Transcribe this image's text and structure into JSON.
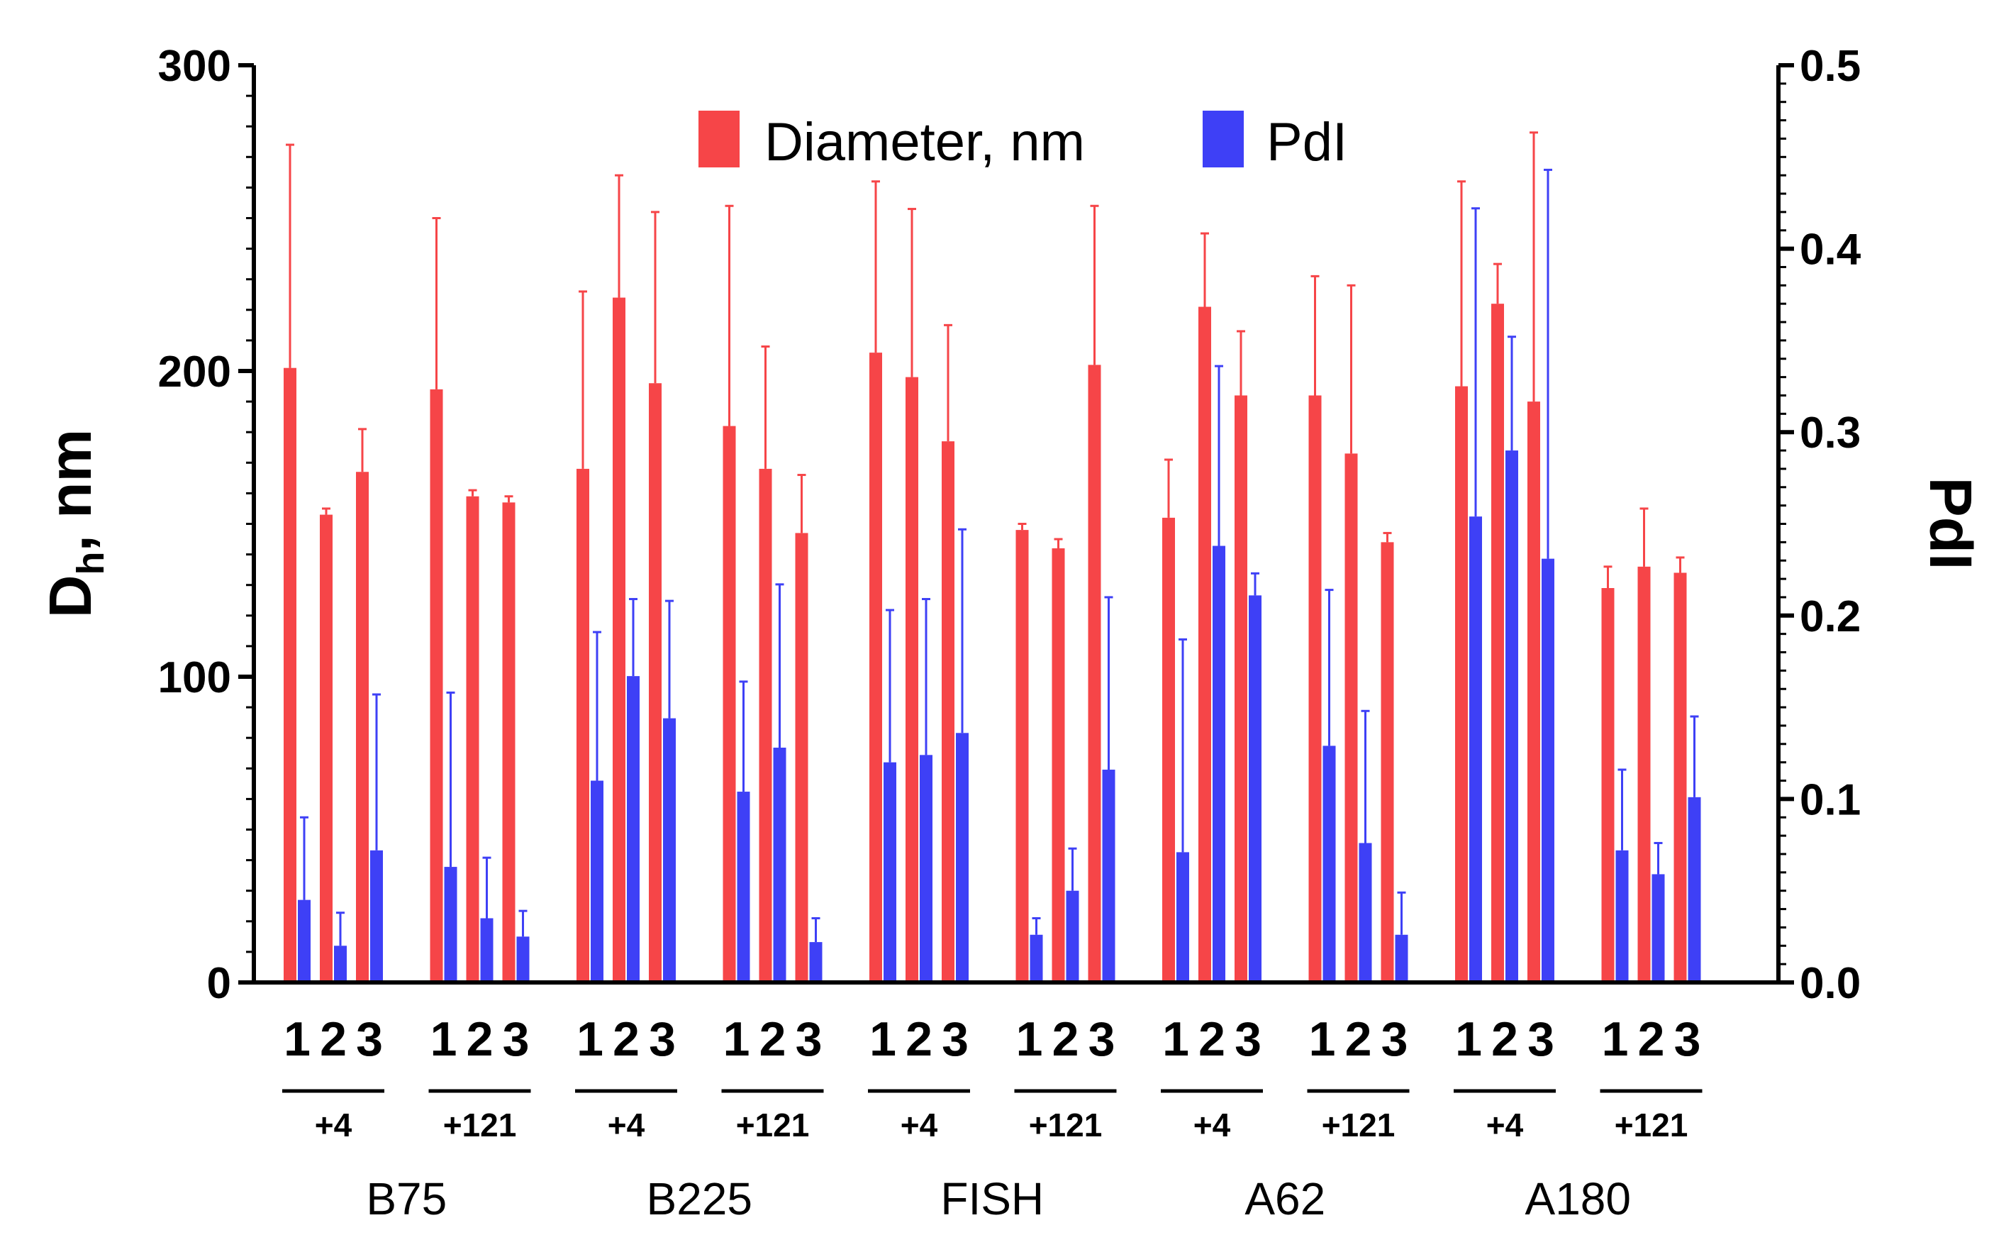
{
  "chart_data": {
    "type": "bar",
    "title": "",
    "ylabel": {
      "main": "D",
      "sub": "h",
      "rest": ", nm"
    },
    "y2label": "PdI",
    "ylim": [
      0,
      300
    ],
    "y2lim": [
      0,
      0.5
    ],
    "yticks": [
      "0",
      "100",
      "200",
      "300"
    ],
    "y2ticks": [
      "0.0",
      "0.1",
      "0.2",
      "0.3",
      "0.4",
      "0.5"
    ],
    "legend": {
      "position": "top-center",
      "diameter_label": "Diameter, nm",
      "pdi_label": "PdI"
    },
    "colors": {
      "diameter": "#f64548",
      "pdi": "#3e40f6",
      "axis": "#000000"
    },
    "samples": [
      {
        "name": "B75",
        "groups": [
          {
            "day": "+4",
            "replicates": [
              "1",
              "2",
              "3"
            ],
            "diameter": [
              201,
              153,
              167
            ],
            "diameter_err": [
              73,
              2,
              14
            ],
            "pdi": [
              0.045,
              0.02,
              0.072
            ],
            "pdi_err": [
              0.045,
              0.018,
              0.085
            ]
          },
          {
            "day": "+121",
            "replicates": [
              "1",
              "2",
              "3"
            ],
            "diameter": [
              194,
              159,
              157
            ],
            "diameter_err": [
              56,
              2,
              2
            ],
            "pdi": [
              0.063,
              0.035,
              0.025
            ],
            "pdi_err": [
              0.095,
              0.033,
              0.014
            ]
          }
        ]
      },
      {
        "name": "B225",
        "groups": [
          {
            "day": "+4",
            "replicates": [
              "1",
              "2",
              "3"
            ],
            "diameter": [
              168,
              224,
              196
            ],
            "diameter_err": [
              58,
              40,
              56
            ],
            "pdi": [
              0.11,
              0.167,
              0.144
            ],
            "pdi_err": [
              0.081,
              0.042,
              0.064
            ]
          },
          {
            "day": "+121",
            "replicates": [
              "1",
              "2",
              "3"
            ],
            "diameter": [
              182,
              168,
              147
            ],
            "diameter_err": [
              72,
              40,
              19
            ],
            "pdi": [
              0.104,
              0.128,
              0.022
            ],
            "pdi_err": [
              0.06,
              0.089,
              0.013
            ]
          }
        ]
      },
      {
        "name": "FISH",
        "groups": [
          {
            "day": "+4",
            "replicates": [
              "1",
              "2",
              "3"
            ],
            "diameter": [
              206,
              198,
              177
            ],
            "diameter_err": [
              56,
              55,
              38
            ],
            "pdi": [
              0.12,
              0.124,
              0.136
            ],
            "pdi_err": [
              0.083,
              0.085,
              0.111
            ]
          },
          {
            "day": "+121",
            "replicates": [
              "1",
              "2",
              "3"
            ],
            "diameter": [
              148,
              142,
              202
            ],
            "diameter_err": [
              2,
              3,
              52
            ],
            "pdi": [
              0.026,
              0.05,
              0.116
            ],
            "pdi_err": [
              0.009,
              0.023,
              0.094
            ]
          }
        ]
      },
      {
        "name": "A62",
        "groups": [
          {
            "day": "+4",
            "replicates": [
              "1",
              "2",
              "3"
            ],
            "diameter": [
              152,
              221,
              192
            ],
            "diameter_err": [
              19,
              24,
              21
            ],
            "pdi": [
              0.071,
              0.238,
              0.211
            ],
            "pdi_err": [
              0.116,
              0.098,
              0.012
            ]
          },
          {
            "day": "+121",
            "replicates": [
              "1",
              "2",
              "3"
            ],
            "diameter": [
              192,
              173,
              144
            ],
            "diameter_err": [
              39,
              55,
              3
            ],
            "pdi": [
              0.129,
              0.076,
              0.026
            ],
            "pdi_err": [
              0.085,
              0.072,
              0.023
            ]
          }
        ]
      },
      {
        "name": "A180",
        "groups": [
          {
            "day": "+4",
            "replicates": [
              "1",
              "2",
              "3"
            ],
            "diameter": [
              195,
              222,
              190
            ],
            "diameter_err": [
              67,
              13,
              88
            ],
            "pdi": [
              0.254,
              0.29,
              0.231
            ],
            "pdi_err": [
              0.168,
              0.062,
              0.212
            ]
          },
          {
            "day": "+121",
            "replicates": [
              "1",
              "2",
              "3"
            ],
            "diameter": [
              129,
              136,
              134
            ],
            "diameter_err": [
              7,
              19,
              5
            ],
            "pdi": [
              0.072,
              0.059,
              0.101
            ],
            "pdi_err": [
              0.044,
              0.017,
              0.044
            ]
          }
        ]
      }
    ]
  }
}
